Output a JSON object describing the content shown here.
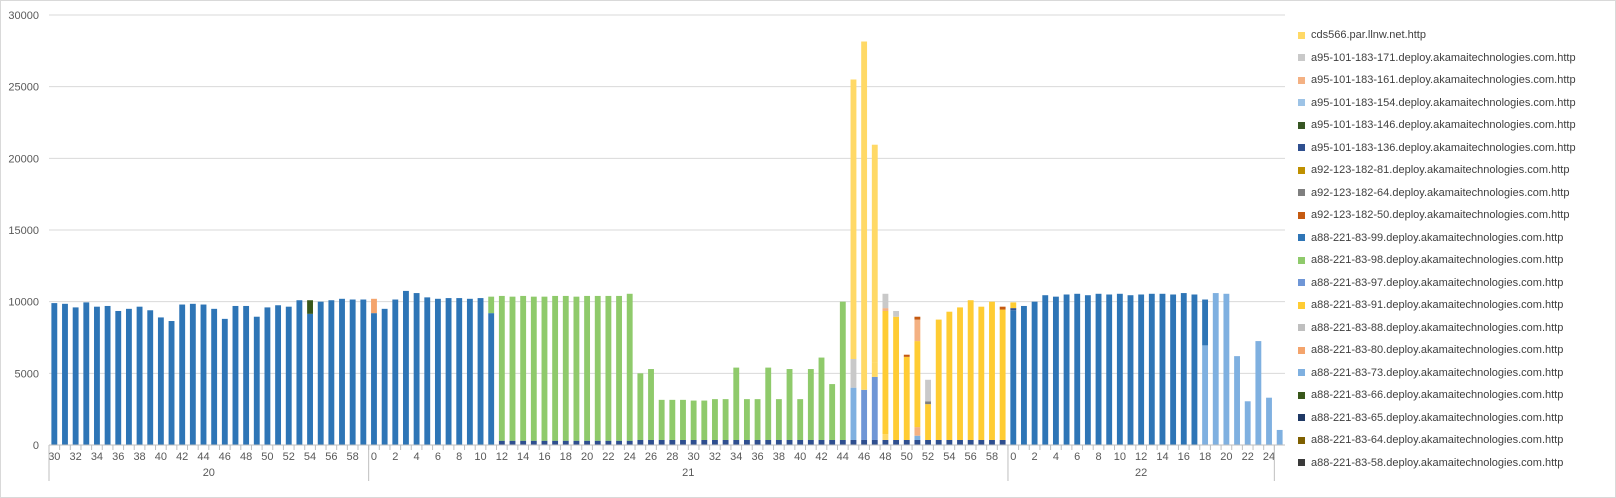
{
  "chart_data": {
    "type": "bar",
    "stacked": true,
    "title": "",
    "xlabel": "",
    "ylabel": "",
    "ylim": [
      0,
      30000
    ],
    "yticks": [
      0,
      5000,
      10000,
      15000,
      20000,
      25000,
      30000
    ],
    "grid": true,
    "legend_position": "right",
    "groups": [
      {
        "label": "20",
        "start": 30,
        "end": 59,
        "tick_labels": [
          "30",
          "32",
          "34",
          "36",
          "38",
          "40",
          "42",
          "44",
          "46",
          "48",
          "50",
          "52",
          "54",
          "56",
          "58"
        ]
      },
      {
        "label": "21",
        "start": 0,
        "end": 59,
        "tick_labels": [
          "0",
          "2",
          "4",
          "6",
          "8",
          "10",
          "12",
          "14",
          "16",
          "18",
          "20",
          "22",
          "24",
          "26",
          "28",
          "30",
          "32",
          "34",
          "36",
          "38",
          "40",
          "42",
          "44",
          "46",
          "48",
          "50",
          "52",
          "54",
          "56",
          "58"
        ]
      },
      {
        "label": "22",
        "start": 0,
        "end": 24,
        "tick_labels": [
          "0",
          "2",
          "4",
          "6",
          "8",
          "10",
          "12",
          "14",
          "16",
          "18",
          "20",
          "22",
          "24"
        ]
      }
    ],
    "series": [
      {
        "name": "cds566.par.llnw.net.http",
        "color": "#ffd966"
      },
      {
        "name": "a95-101-183-171.deploy.akamaitechnologies.com.http",
        "color": "#c9c9c9"
      },
      {
        "name": "a95-101-183-161.deploy.akamaitechnologies.com.http",
        "color": "#f4b183"
      },
      {
        "name": "a95-101-183-154.deploy.akamaitechnologies.com.http",
        "color": "#9dc3e6"
      },
      {
        "name": "a95-101-183-146.deploy.akamaitechnologies.com.http",
        "color": "#375623"
      },
      {
        "name": "a95-101-183-136.deploy.akamaitechnologies.com.http",
        "color": "#2f4f8f"
      },
      {
        "name": "a92-123-182-81.deploy.akamaitechnologies.com.http",
        "color": "#bf9000"
      },
      {
        "name": "a92-123-182-64.deploy.akamaitechnologies.com.http",
        "color": "#7f7f7f"
      },
      {
        "name": "a92-123-182-50.deploy.akamaitechnologies.com.http",
        "color": "#c55a11"
      },
      {
        "name": "a88-221-83-99.deploy.akamaitechnologies.com.http",
        "color": "#2e75b6"
      },
      {
        "name": "a88-221-83-98.deploy.akamaitechnologies.com.http",
        "color": "#8fca6b"
      },
      {
        "name": "a88-221-83-97.deploy.akamaitechnologies.com.http",
        "color": "#6f96d6"
      },
      {
        "name": "a88-221-83-91.deploy.akamaitechnologies.com.http",
        "color": "#ffcc33"
      },
      {
        "name": "a88-221-83-88.deploy.akamaitechnologies.com.http",
        "color": "#bfbfbf"
      },
      {
        "name": "a88-221-83-80.deploy.akamaitechnologies.com.http",
        "color": "#f4a46c"
      },
      {
        "name": "a88-221-83-73.deploy.akamaitechnologies.com.http",
        "color": "#7fb0e0"
      },
      {
        "name": "a88-221-83-66.deploy.akamaitechnologies.com.http",
        "color": "#38571a"
      },
      {
        "name": "a88-221-83-65.deploy.akamaitechnologies.com.http",
        "color": "#1f3864"
      },
      {
        "name": "a88-221-83-64.deploy.akamaitechnologies.com.http",
        "color": "#7f6000"
      },
      {
        "name": "a88-221-83-58.deploy.akamaitechnologies.com.http",
        "color": "#3a3a3a"
      }
    ],
    "bars": [
      [
        [
          9,
          9900
        ]
      ],
      [
        [
          9,
          9850
        ]
      ],
      [
        [
          9,
          9600
        ]
      ],
      [
        [
          9,
          9950
        ]
      ],
      [
        [
          9,
          9650
        ]
      ],
      [
        [
          9,
          9700
        ]
      ],
      [
        [
          9,
          9350
        ]
      ],
      [
        [
          9,
          9500
        ]
      ],
      [
        [
          9,
          9650
        ]
      ],
      [
        [
          9,
          9400
        ]
      ],
      [
        [
          9,
          8900
        ]
      ],
      [
        [
          9,
          8650
        ]
      ],
      [
        [
          9,
          9800
        ]
      ],
      [
        [
          9,
          9850
        ]
      ],
      [
        [
          9,
          9800
        ]
      ],
      [
        [
          9,
          9500
        ]
      ],
      [
        [
          9,
          8800
        ]
      ],
      [
        [
          9,
          9700
        ]
      ],
      [
        [
          9,
          9700
        ]
      ],
      [
        [
          9,
          8950
        ]
      ],
      [
        [
          9,
          9600
        ]
      ],
      [
        [
          9,
          9750
        ]
      ],
      [
        [
          9,
          9650
        ]
      ],
      [
        [
          9,
          10100
        ]
      ],
      [
        [
          9,
          9150
        ],
        [
          16,
          950
        ]
      ],
      [
        [
          9,
          10000
        ]
      ],
      [
        [
          9,
          10100
        ]
      ],
      [
        [
          9,
          10200
        ]
      ],
      [
        [
          9,
          10150
        ]
      ],
      [
        [
          9,
          10150
        ]
      ],
      [
        [
          9,
          9200
        ],
        [
          14,
          1000
        ]
      ],
      [
        [
          9,
          9500
        ]
      ],
      [
        [
          9,
          10150
        ]
      ],
      [
        [
          9,
          10750
        ]
      ],
      [
        [
          9,
          10600
        ]
      ],
      [
        [
          9,
          10300
        ]
      ],
      [
        [
          9,
          10200
        ]
      ],
      [
        [
          9,
          10250
        ]
      ],
      [
        [
          9,
          10250
        ]
      ],
      [
        [
          9,
          10200
        ]
      ],
      [
        [
          9,
          10250
        ]
      ],
      [
        [
          9,
          9200
        ],
        [
          10,
          1150
        ]
      ],
      [
        [
          5,
          300
        ],
        [
          10,
          10100
        ]
      ],
      [
        [
          5,
          300
        ],
        [
          10,
          10050
        ]
      ],
      [
        [
          5,
          300
        ],
        [
          10,
          10100
        ]
      ],
      [
        [
          5,
          300
        ],
        [
          10,
          10050
        ]
      ],
      [
        [
          5,
          300
        ],
        [
          10,
          10050
        ]
      ],
      [
        [
          5,
          300
        ],
        [
          10,
          10100
        ]
      ],
      [
        [
          5,
          300
        ],
        [
          10,
          10100
        ]
      ],
      [
        [
          5,
          300
        ],
        [
          10,
          10050
        ]
      ],
      [
        [
          5,
          300
        ],
        [
          10,
          10100
        ]
      ],
      [
        [
          5,
          300
        ],
        [
          10,
          10100
        ]
      ],
      [
        [
          5,
          300
        ],
        [
          10,
          10100
        ]
      ],
      [
        [
          5,
          300
        ],
        [
          10,
          10100
        ]
      ],
      [
        [
          5,
          300
        ],
        [
          10,
          10250
        ]
      ],
      [
        [
          5,
          350
        ],
        [
          10,
          4650
        ]
      ],
      [
        [
          5,
          350
        ],
        [
          10,
          4950
        ]
      ],
      [
        [
          5,
          350
        ],
        [
          10,
          2800
        ]
      ],
      [
        [
          5,
          350
        ],
        [
          10,
          2800
        ]
      ],
      [
        [
          5,
          350
        ],
        [
          10,
          2800
        ]
      ],
      [
        [
          5,
          350
        ],
        [
          10,
          2750
        ]
      ],
      [
        [
          5,
          350
        ],
        [
          10,
          2750
        ]
      ],
      [
        [
          5,
          350
        ],
        [
          10,
          2850
        ]
      ],
      [
        [
          5,
          350
        ],
        [
          10,
          2850
        ]
      ],
      [
        [
          5,
          350
        ],
        [
          10,
          5050
        ]
      ],
      [
        [
          5,
          350
        ],
        [
          10,
          2850
        ]
      ],
      [
        [
          5,
          350
        ],
        [
          10,
          2850
        ]
      ],
      [
        [
          5,
          350
        ],
        [
          10,
          5050
        ]
      ],
      [
        [
          5,
          350
        ],
        [
          10,
          2850
        ]
      ],
      [
        [
          5,
          350
        ],
        [
          10,
          4950
        ]
      ],
      [
        [
          5,
          350
        ],
        [
          10,
          2850
        ]
      ],
      [
        [
          5,
          350
        ],
        [
          10,
          4950
        ]
      ],
      [
        [
          5,
          350
        ],
        [
          10,
          5750
        ]
      ],
      [
        [
          5,
          350
        ],
        [
          10,
          3900
        ]
      ],
      [
        [
          5,
          350
        ],
        [
          10,
          9650
        ]
      ],
      [
        [
          5,
          350
        ],
        [
          15,
          3650
        ],
        [
          1,
          2000
        ],
        [
          0,
          19500
        ]
      ],
      [
        [
          5,
          350
        ],
        [
          11,
          3500
        ],
        [
          0,
          24300
        ]
      ],
      [
        [
          5,
          350
        ],
        [
          11,
          4400
        ],
        [
          0,
          1000
        ],
        [
          0,
          15200
        ]
      ],
      [
        [
          5,
          350
        ],
        [
          0,
          400
        ],
        [
          12,
          8600
        ],
        [
          2,
          200
        ],
        [
          1,
          1000
        ]
      ],
      [
        [
          5,
          350
        ],
        [
          12,
          8600
        ],
        [
          1,
          400
        ]
      ],
      [
        [
          5,
          350
        ],
        [
          12,
          5800
        ],
        [
          8,
          150
        ]
      ],
      [
        [
          5,
          350
        ],
        [
          15,
          300
        ],
        [
          2,
          600
        ],
        [
          12,
          6000
        ],
        [
          2,
          1500
        ],
        [
          8,
          200
        ]
      ],
      [
        [
          5,
          350
        ],
        [
          12,
          2500
        ],
        [
          7,
          200
        ],
        [
          1,
          1500
        ]
      ],
      [
        [
          5,
          350
        ],
        [
          12,
          8400
        ]
      ],
      [
        [
          5,
          350
        ],
        [
          12,
          8950
        ]
      ],
      [
        [
          5,
          350
        ],
        [
          12,
          9250
        ]
      ],
      [
        [
          5,
          350
        ],
        [
          12,
          9750
        ]
      ],
      [
        [
          5,
          350
        ],
        [
          12,
          9300
        ]
      ],
      [
        [
          5,
          350
        ],
        [
          12,
          9650
        ]
      ],
      [
        [
          5,
          350
        ],
        [
          12,
          9100
        ],
        [
          8,
          200
        ]
      ],
      [
        [
          9,
          9400
        ],
        [
          5,
          150
        ],
        [
          12,
          400
        ]
      ],
      [
        [
          9,
          9700
        ]
      ],
      [
        [
          9,
          10000
        ]
      ],
      [
        [
          9,
          10450
        ]
      ],
      [
        [
          9,
          10350
        ]
      ],
      [
        [
          9,
          10500
        ]
      ],
      [
        [
          9,
          10550
        ]
      ],
      [
        [
          9,
          10450
        ]
      ],
      [
        [
          9,
          10550
        ]
      ],
      [
        [
          9,
          10500
        ]
      ],
      [
        [
          9,
          10550
        ]
      ],
      [
        [
          9,
          10450
        ]
      ],
      [
        [
          9,
          10500
        ]
      ],
      [
        [
          9,
          10550
        ]
      ],
      [
        [
          9,
          10550
        ]
      ],
      [
        [
          9,
          10500
        ]
      ],
      [
        [
          9,
          10600
        ]
      ],
      [
        [
          9,
          10500
        ]
      ],
      [
        [
          15,
          6950
        ],
        [
          9,
          3200
        ]
      ],
      [
        [
          15,
          10600
        ]
      ],
      [
        [
          15,
          10550
        ]
      ],
      [
        [
          15,
          6200
        ]
      ],
      [
        [
          15,
          3050
        ]
      ],
      [
        [
          15,
          7250
        ]
      ],
      [
        [
          15,
          3300
        ]
      ],
      [
        [
          15,
          1050
        ]
      ]
    ]
  }
}
